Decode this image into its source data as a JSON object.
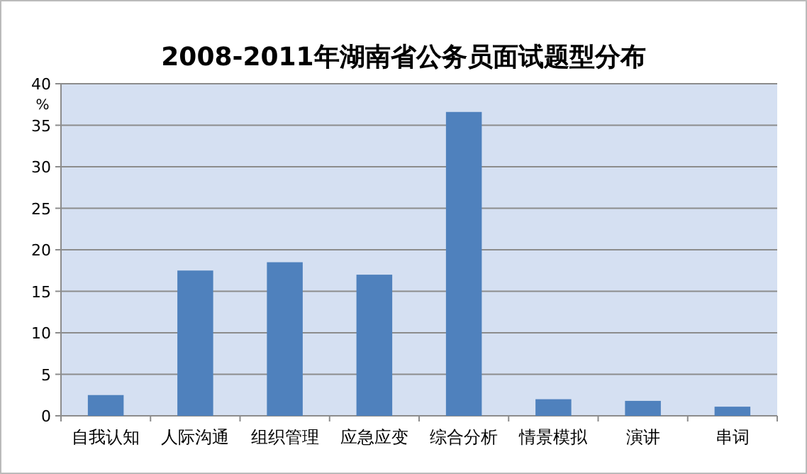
{
  "chart_data": {
    "type": "bar",
    "title": "2008-2011年湖南省公务员面试题型分布",
    "ylabel": "%",
    "categories": [
      "自我认知",
      "人际沟通",
      "组织管理",
      "应急应变",
      "综合分析",
      "情景模拟",
      "演讲",
      "串词"
    ],
    "values": [
      2.5,
      17.5,
      18.5,
      17.0,
      36.6,
      2.0,
      1.8,
      1.1
    ],
    "color": "#4f81bd",
    "ylim": [
      0,
      40
    ],
    "yticks": [
      0,
      5,
      10,
      15,
      20,
      25,
      30,
      35,
      40
    ],
    "grid": "y"
  }
}
